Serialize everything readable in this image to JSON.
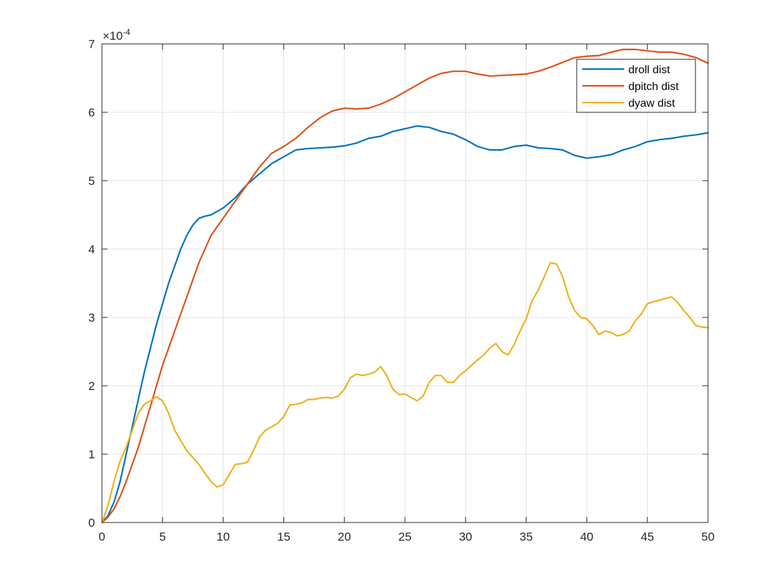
{
  "chart_data": {
    "type": "line",
    "xlim": [
      0,
      50
    ],
    "ylim": [
      0,
      7
    ],
    "x_ticks": [
      0,
      5,
      10,
      15,
      20,
      25,
      30,
      35,
      40,
      45,
      50
    ],
    "y_ticks": [
      0,
      1,
      2,
      3,
      4,
      5,
      6,
      7
    ],
    "y_exponent_prefix": "×10",
    "y_exponent_power": "-4",
    "grid": true,
    "legend_position": "top-right",
    "series": [
      {
        "name": "droll dist",
        "color": "#0072BD",
        "x": [
          0,
          0.5,
          1,
          1.5,
          2,
          2.5,
          3,
          3.5,
          4,
          4.5,
          5,
          5.5,
          6,
          6.5,
          7,
          7.5,
          8,
          8.5,
          9,
          9.5,
          10,
          11,
          12,
          13,
          14,
          15,
          16,
          17,
          18,
          19,
          20,
          21,
          22,
          23,
          24,
          25,
          26,
          27,
          28,
          29,
          30,
          31,
          32,
          33,
          34,
          35,
          36,
          37,
          38,
          39,
          40,
          41,
          42,
          43,
          44,
          45,
          46,
          47,
          48,
          49,
          50
        ],
        "y": [
          0,
          0.1,
          0.3,
          0.6,
          1.0,
          1.4,
          1.8,
          2.2,
          2.55,
          2.9,
          3.2,
          3.5,
          3.75,
          4.0,
          4.2,
          4.35,
          4.45,
          4.48,
          4.5,
          4.55,
          4.6,
          4.75,
          4.95,
          5.1,
          5.25,
          5.35,
          5.45,
          5.47,
          5.48,
          5.49,
          5.51,
          5.55,
          5.62,
          5.65,
          5.72,
          5.76,
          5.8,
          5.78,
          5.72,
          5.68,
          5.6,
          5.5,
          5.45,
          5.45,
          5.5,
          5.52,
          5.48,
          5.47,
          5.45,
          5.37,
          5.33,
          5.35,
          5.38,
          5.45,
          5.5,
          5.57,
          5.6,
          5.62,
          5.65,
          5.67,
          5.7
        ]
      },
      {
        "name": "dpitch dist",
        "color": "#D95319",
        "x": [
          0,
          0.5,
          1,
          1.5,
          2,
          2.5,
          3,
          3.5,
          4,
          4.5,
          5,
          6,
          7,
          8,
          9,
          10,
          11,
          12,
          13,
          14,
          15,
          16,
          17,
          18,
          19,
          20,
          21,
          22,
          23,
          24,
          25,
          26,
          27,
          28,
          29,
          30,
          31,
          32,
          33,
          34,
          35,
          36,
          37,
          38,
          39,
          40,
          41,
          42,
          43,
          44,
          45,
          46,
          47,
          48,
          49,
          50
        ],
        "y": [
          0,
          0.08,
          0.2,
          0.38,
          0.6,
          0.85,
          1.1,
          1.4,
          1.7,
          2.0,
          2.3,
          2.8,
          3.3,
          3.8,
          4.2,
          4.45,
          4.7,
          4.95,
          5.2,
          5.4,
          5.5,
          5.62,
          5.78,
          5.92,
          6.02,
          6.06,
          6.05,
          6.06,
          6.12,
          6.2,
          6.3,
          6.4,
          6.5,
          6.57,
          6.6,
          6.6,
          6.56,
          6.53,
          6.54,
          6.55,
          6.56,
          6.6,
          6.66,
          6.73,
          6.8,
          6.82,
          6.83,
          6.88,
          6.92,
          6.92,
          6.9,
          6.88,
          6.88,
          6.85,
          6.8,
          6.72
        ]
      },
      {
        "name": "dyaw dist",
        "color": "#EDB120",
        "x": [
          0,
          0.5,
          1,
          1.5,
          2,
          2.5,
          3,
          3.5,
          4,
          4.5,
          5,
          5.5,
          6,
          6.5,
          7,
          7.5,
          8,
          8.5,
          9,
          9.5,
          10,
          10.5,
          11,
          11.5,
          12,
          12.5,
          13,
          13.5,
          14,
          14.5,
          15,
          15.5,
          16,
          16.5,
          17,
          17.5,
          18,
          18.5,
          19,
          19.5,
          20,
          20.5,
          21,
          21.5,
          22,
          22.5,
          23,
          23.5,
          24,
          24.5,
          25,
          25.5,
          26,
          26.5,
          27,
          27.5,
          28,
          28.5,
          29,
          29.5,
          30,
          30.5,
          31,
          31.5,
          32,
          32.5,
          33,
          33.5,
          34,
          34.5,
          35,
          35.5,
          36,
          36.5,
          37,
          37.5,
          38,
          38.5,
          39,
          39.5,
          40,
          40.5,
          41,
          41.5,
          42,
          42.5,
          43,
          43.5,
          44,
          44.5,
          45,
          45.5,
          46,
          46.5,
          47,
          47.5,
          48,
          48.5,
          49,
          49.5,
          50
        ],
        "y": [
          0,
          0.25,
          0.6,
          0.9,
          1.1,
          1.35,
          1.6,
          1.73,
          1.78,
          1.84,
          1.78,
          1.6,
          1.35,
          1.2,
          1.05,
          0.95,
          0.85,
          0.72,
          0.6,
          0.52,
          0.55,
          0.7,
          0.85,
          0.86,
          0.88,
          1.05,
          1.25,
          1.35,
          1.4,
          1.45,
          1.55,
          1.72,
          1.73,
          1.75,
          1.8,
          1.8,
          1.82,
          1.83,
          1.82,
          1.85,
          1.95,
          2.12,
          2.17,
          2.15,
          2.17,
          2.2,
          2.28,
          2.15,
          1.95,
          1.87,
          1.88,
          1.83,
          1.78,
          1.85,
          2.05,
          2.15,
          2.15,
          2.05,
          2.05,
          2.15,
          2.22,
          2.3,
          2.38,
          2.45,
          2.55,
          2.62,
          2.5,
          2.45,
          2.6,
          2.8,
          2.98,
          3.25,
          3.4,
          3.6,
          3.8,
          3.78,
          3.6,
          3.3,
          3.1,
          3.0,
          2.98,
          2.88,
          2.75,
          2.8,
          2.78,
          2.73,
          2.75,
          2.8,
          2.95,
          3.05,
          3.2,
          3.23,
          3.25,
          3.28,
          3.3,
          3.22,
          3.1,
          3.0,
          2.88,
          2.86,
          2.85
        ]
      }
    ]
  }
}
